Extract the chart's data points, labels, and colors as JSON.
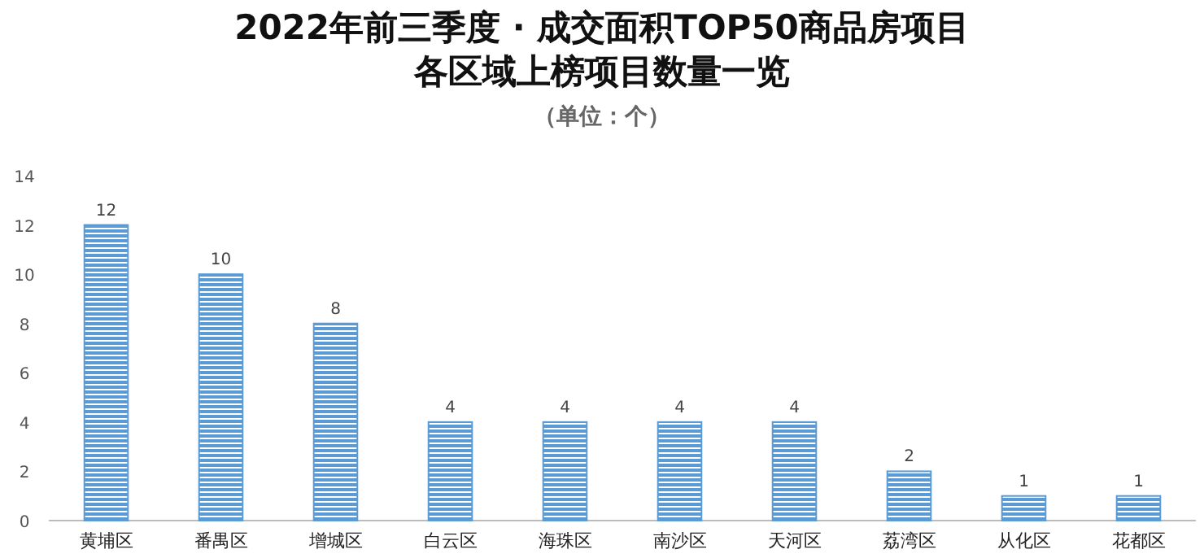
{
  "chart_data": {
    "type": "bar",
    "title": "2022年前三季度 · 成交面积TOP50商品房项目",
    "subtitle": "各区域上榜项目数量一览",
    "annotations": [
      "（单位：个）"
    ],
    "categories": [
      "黄埔区",
      "番禺区",
      "增城区",
      "白云区",
      "海珠区",
      "南沙区",
      "天河区",
      "荔湾区",
      "从化区",
      "花都区"
    ],
    "values": [
      12,
      10,
      8,
      4,
      4,
      4,
      4,
      2,
      1,
      1
    ],
    "color": "#5b9bd5",
    "ylim": [
      0,
      14
    ],
    "yticks": [
      0,
      2,
      4,
      6,
      8,
      10,
      12,
      14
    ],
    "grid": false,
    "data_labels": true
  }
}
